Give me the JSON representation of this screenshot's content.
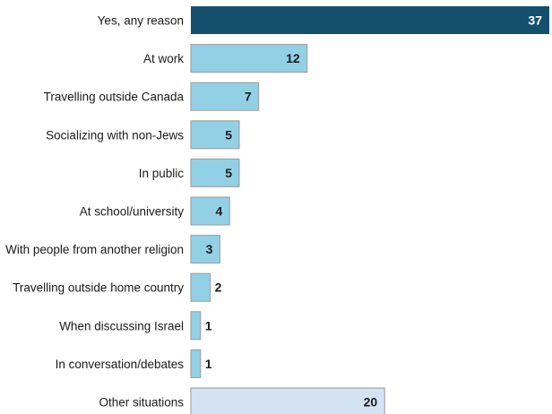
{
  "chart_data": {
    "type": "bar",
    "orientation": "horizontal",
    "categories": [
      "Yes, any reason",
      "At work",
      "Travelling outside Canada",
      "Socializing with non-Jews",
      "In public",
      "At school/university",
      "With people from another religion",
      "Travelling outside home country",
      "When discussing Israel",
      "In conversation/debates",
      "Other situations"
    ],
    "values": [
      37,
      12,
      7,
      5,
      5,
      4,
      3,
      2,
      1,
      1,
      20
    ],
    "xlim": [
      0,
      37
    ],
    "grid": false,
    "legend": "none",
    "colors": {
      "primary": "#14506e",
      "secondary": "#92d0e6",
      "other": "#d4e3f4",
      "bar_border": "#9a9a9a",
      "label_on_dark": "#ffffff",
      "label_on_light": "#1a1a1a"
    },
    "bar_styles": [
      "primary",
      "secondary",
      "secondary",
      "secondary",
      "secondary",
      "secondary",
      "secondary",
      "secondary",
      "secondary",
      "secondary",
      "other"
    ]
  }
}
